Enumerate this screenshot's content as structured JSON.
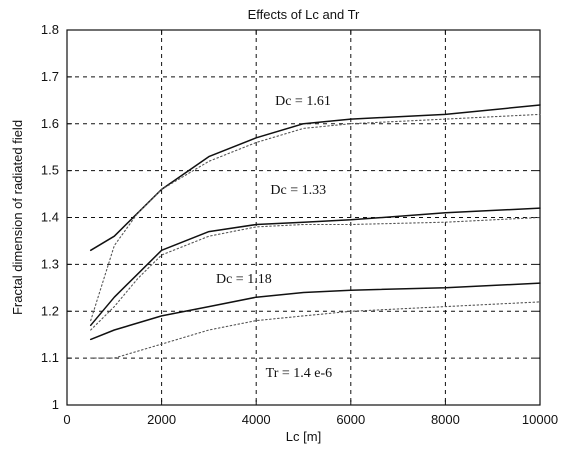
{
  "chart_data": {
    "type": "line",
    "title": "Effects of Lc and Tr",
    "xlabel": "Lc [m]",
    "ylabel": "Fractal dimension of radiated field",
    "xlim": [
      0,
      10000
    ],
    "ylim": [
      1,
      1.8
    ],
    "xticks": [
      0,
      2000,
      4000,
      6000,
      8000,
      10000
    ],
    "yticks": [
      1,
      1.1,
      1.2,
      1.3,
      1.4,
      1.5,
      1.6,
      1.7,
      1.8
    ],
    "xtick_labels": [
      "0",
      "2000",
      "4000",
      "6000",
      "8000",
      "10000"
    ],
    "ytick_labels": [
      "1",
      "1.1",
      "1.2",
      "1.3",
      "1.4",
      "1.5",
      "1.6",
      "1.7",
      "1.8"
    ],
    "grid": true,
    "series": [
      {
        "style": "solid",
        "x": [
          500,
          1000,
          1500,
          2000,
          3000,
          4000,
          5000,
          6000,
          8000,
          10000
        ],
        "y": [
          1.33,
          1.36,
          1.41,
          1.46,
          1.53,
          1.57,
          1.6,
          1.61,
          1.62,
          1.64
        ]
      },
      {
        "style": "dotted",
        "x": [
          500,
          1000,
          1500,
          2000,
          3000,
          4000,
          5000,
          6000,
          8000,
          10000
        ],
        "y": [
          1.18,
          1.34,
          1.41,
          1.46,
          1.52,
          1.56,
          1.59,
          1.6,
          1.61,
          1.62
        ]
      },
      {
        "style": "solid",
        "x": [
          500,
          1000,
          1500,
          2000,
          3000,
          4000,
          5000,
          6000,
          8000,
          10000
        ],
        "y": [
          1.17,
          1.23,
          1.28,
          1.33,
          1.37,
          1.385,
          1.39,
          1.395,
          1.41,
          1.42
        ]
      },
      {
        "style": "dotted",
        "x": [
          500,
          1000,
          1500,
          2000,
          3000,
          4000,
          5000,
          6000,
          8000,
          10000
        ],
        "y": [
          1.16,
          1.21,
          1.27,
          1.32,
          1.36,
          1.38,
          1.385,
          1.385,
          1.39,
          1.4
        ]
      },
      {
        "style": "solid",
        "x": [
          500,
          1000,
          2000,
          3000,
          4000,
          5000,
          6000,
          8000,
          10000
        ],
        "y": [
          1.14,
          1.16,
          1.19,
          1.21,
          1.23,
          1.24,
          1.245,
          1.25,
          1.26
        ]
      },
      {
        "style": "dotted",
        "x": [
          500,
          1000,
          2000,
          3000,
          4000,
          5000,
          6000,
          8000,
          10000
        ],
        "y": [
          1.1,
          1.1,
          1.13,
          1.16,
          1.18,
          1.19,
          1.2,
          1.21,
          1.22
        ]
      }
    ],
    "annotations": [
      {
        "text": "Dc = 1.61",
        "x": 4400,
        "y": 1.64
      },
      {
        "text": "Dc = 1.33",
        "x": 4300,
        "y": 1.45
      },
      {
        "text": "Dc = 1.18",
        "x": 3150,
        "y": 1.26
      },
      {
        "text": "Tr = 1.4 e-6",
        "x": 4200,
        "y": 1.06
      }
    ],
    "colors": {
      "line": "#111111",
      "dotted": "#555555",
      "grid": "#111111",
      "axes": "#111111"
    }
  }
}
